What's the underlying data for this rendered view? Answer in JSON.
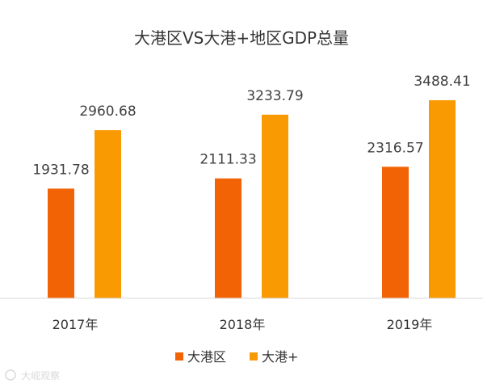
{
  "chart_data": {
    "type": "bar",
    "title": "大港区VS大港+地区GDP总量",
    "categories": [
      "2017年",
      "2018年",
      "2019年"
    ],
    "series": [
      {
        "name": "大港区",
        "values": [
          1931.78,
          2111.33,
          2316.57
        ],
        "color": "#F26305"
      },
      {
        "name": "大港+",
        "values": [
          2960.68,
          3233.79,
          3488.41
        ],
        "color": "#FA9A03"
      }
    ],
    "value_labels": [
      [
        "1931.78",
        "2111.33",
        "2316.57"
      ],
      [
        "2960.68",
        "3233.79",
        "3488.41"
      ]
    ],
    "ylim": [
      0,
      4000
    ],
    "grid": false,
    "legend": "bottom-center"
  },
  "watermark": "大岘观察",
  "colors": {
    "axis": "#d9d9d9",
    "text": "#333333"
  }
}
